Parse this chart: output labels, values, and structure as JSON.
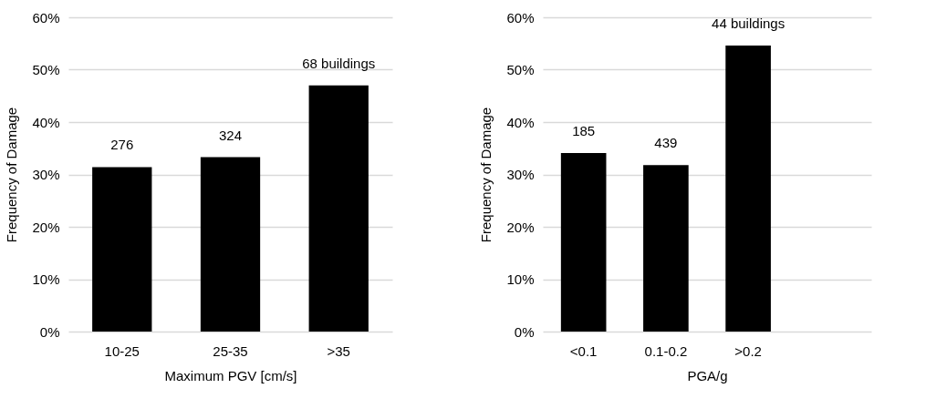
{
  "chart_data": [
    {
      "type": "bar",
      "xlabel": "Maximum PGV [cm/s]",
      "ylabel": "Frequency of Damage",
      "categories": [
        "10-25",
        "25-35",
        ">35"
      ],
      "values": [
        31.4,
        33.3,
        47.0
      ],
      "color": "#000000",
      "ylim": [
        0,
        60
      ],
      "yticks": [
        {
          "value": 0,
          "label": "0%"
        },
        {
          "value": 10,
          "label": "10%"
        },
        {
          "value": 20,
          "label": "20%"
        },
        {
          "value": 30,
          "label": "30%"
        },
        {
          "value": 40,
          "label": "40%"
        },
        {
          "value": 50,
          "label": "50%"
        },
        {
          "value": 60,
          "label": "60%"
        }
      ],
      "grid": "y",
      "legend": false,
      "annotations": [
        {
          "text": "276",
          "x": "10-25",
          "y": 31.4
        },
        {
          "text": "324",
          "x": "25-35",
          "y": 33.3
        },
        {
          "text": "68 buildings",
          "x": ">35",
          "y": 47.0
        }
      ]
    },
    {
      "type": "bar",
      "xlabel": "PGA/g",
      "ylabel": "Frequency of Damage",
      "categories": [
        "<0.1",
        "0.1-0.2",
        ">0.2",
        null
      ],
      "values": [
        34.1,
        31.8,
        54.6,
        null
      ],
      "color": "#000000",
      "ylim": [
        0,
        60
      ],
      "yticks": [
        {
          "value": 0,
          "label": "0%"
        },
        {
          "value": 10,
          "label": "10%"
        },
        {
          "value": 20,
          "label": "20%"
        },
        {
          "value": 30,
          "label": "30%"
        },
        {
          "value": 40,
          "label": "40%"
        },
        {
          "value": 50,
          "label": "50%"
        },
        {
          "value": 60,
          "label": "60%"
        }
      ],
      "grid": "y",
      "legend": false,
      "annotations": [
        {
          "text": "185",
          "x": "<0.1",
          "y": 34.1
        },
        {
          "text": "439",
          "x": "0.1-0.2",
          "y": 31.8
        },
        {
          "text": "44 buildings",
          "x": ">0.2",
          "y": 54.6
        }
      ]
    }
  ]
}
